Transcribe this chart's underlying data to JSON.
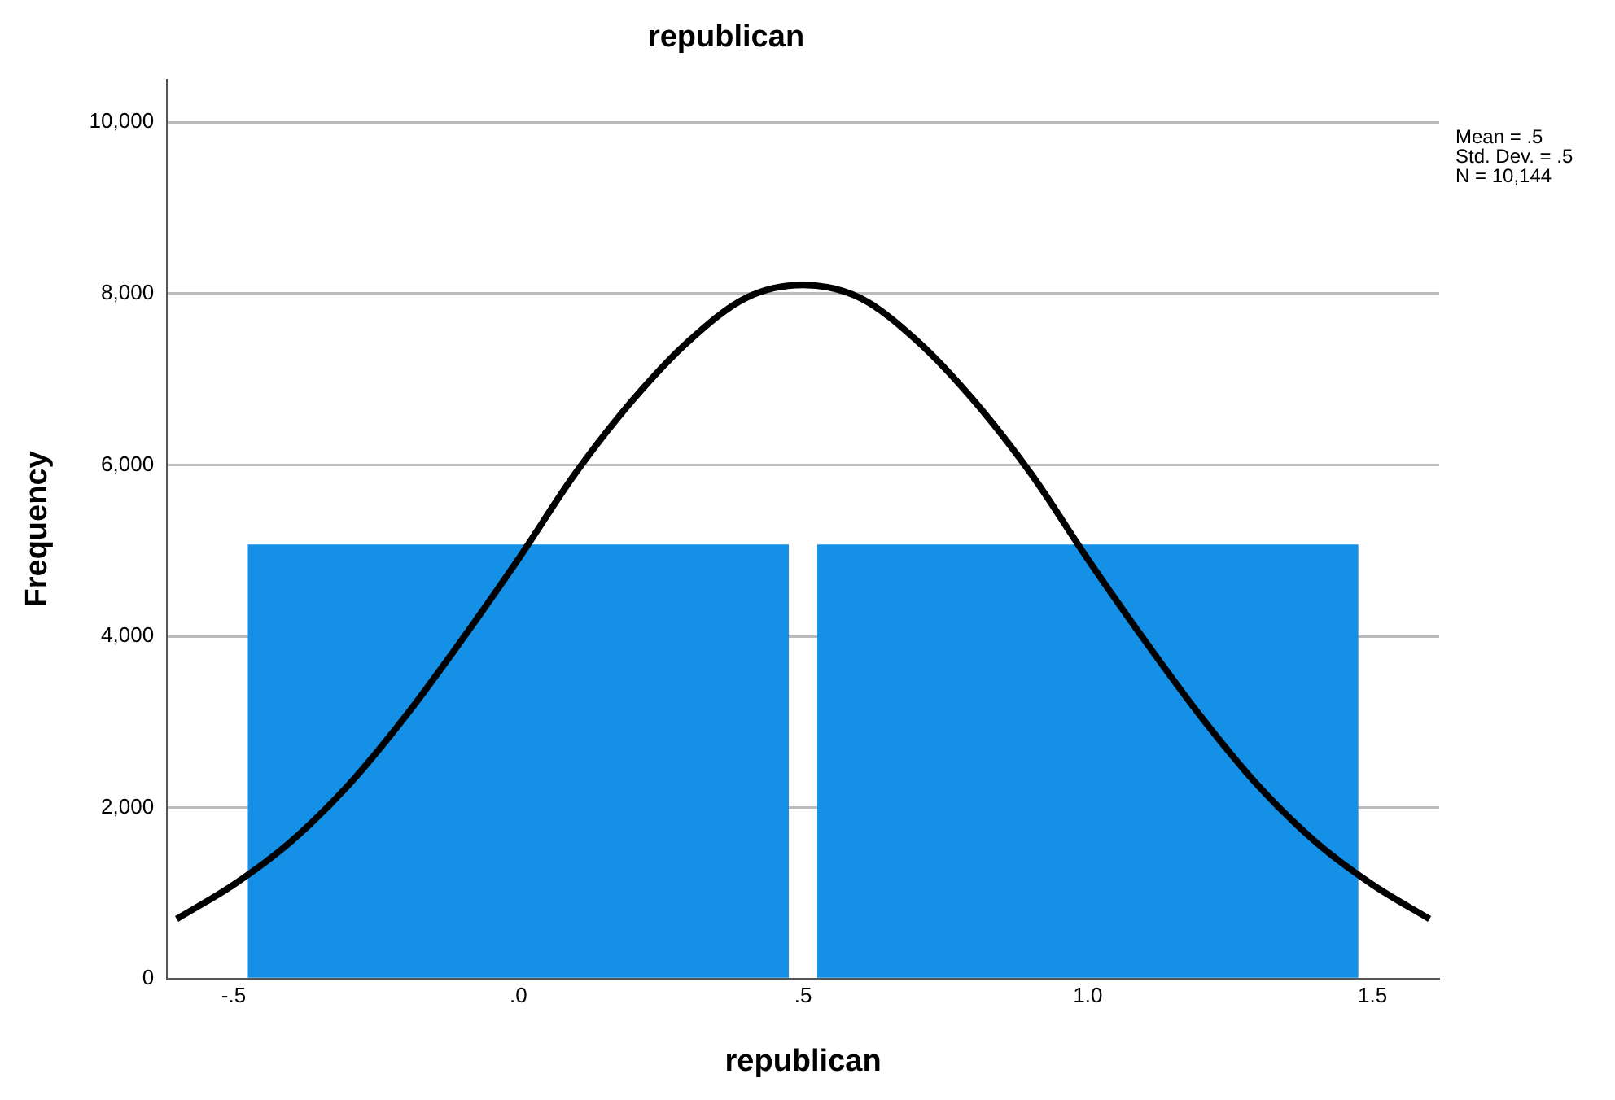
{
  "chart_data": {
    "type": "histogram",
    "title": "republican",
    "xlabel": "republican",
    "ylabel": "Frequency",
    "bins": [
      -0.5,
      0.5,
      1.5
    ],
    "values": [
      5070,
      5070
    ],
    "color": "#1490e6",
    "series": [
      {
        "type": "line",
        "color": "#000000",
        "x": [
          -0.6,
          -0.5,
          -0.4,
          -0.3,
          -0.2,
          -0.1,
          0,
          0.1,
          0.2,
          0.3,
          0.4,
          0.5,
          0.6,
          0.7,
          0.8,
          0.9,
          1,
          1.1,
          1.2,
          1.3,
          1.4,
          1.5,
          1.6
        ],
        "values": [
          700,
          1100,
          1600,
          2250,
          3050,
          3950,
          4900,
          5900,
          6750,
          7450,
          7950,
          8100,
          7950,
          7450,
          6750,
          5900,
          4900,
          3950,
          3050,
          2250,
          1600,
          1100,
          700
        ]
      }
    ],
    "xlim": [
      -0.617,
      1.617
    ],
    "xticks": [
      {
        "value": -0.5,
        "label": "-.5"
      },
      {
        "value": 0,
        "label": ".0"
      },
      {
        "value": 0.5,
        "label": ".5"
      },
      {
        "value": 1,
        "label": "1.0"
      },
      {
        "value": 1.5,
        "label": "1.5"
      }
    ],
    "ylim": [
      0,
      10500
    ],
    "yticks": [
      {
        "value": 0,
        "label": "0"
      },
      {
        "value": 2000,
        "label": "2,000"
      },
      {
        "value": 4000,
        "label": "4,000"
      },
      {
        "value": 6000,
        "label": "6,000"
      },
      {
        "value": 8000,
        "label": "8,000"
      },
      {
        "value": 10000,
        "label": "10,000"
      }
    ],
    "grid": "y",
    "annotations": [
      "Mean = .5",
      "Std. Dev. = .5",
      "N = 10,144"
    ]
  }
}
